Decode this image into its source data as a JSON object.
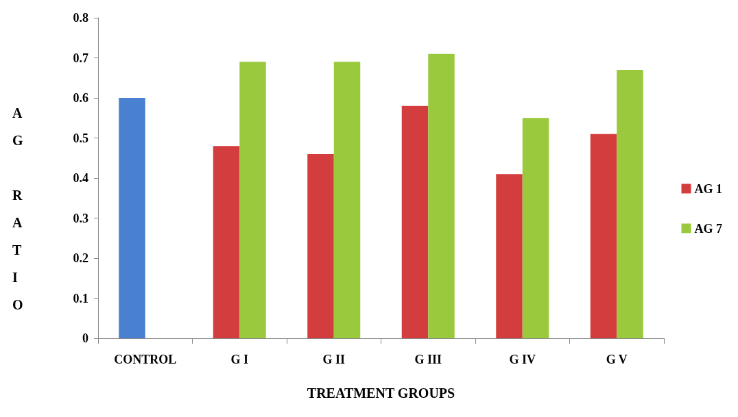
{
  "chart_data": {
    "type": "bar",
    "xlabel": "TREATMENT GROUPS",
    "ylabel": "A\nG\n\nR\nA\nT\nI\nO",
    "categories": [
      "CONTROL",
      "G I",
      "G II",
      "G III",
      "G IV",
      "G V"
    ],
    "series": [
      {
        "name": "AG 1",
        "color": "#d43d3d",
        "colors": [
          "#4a80d0",
          "#d43d3d",
          "#d43d3d",
          "#d43d3d",
          "#d43d3d",
          "#d43d3d"
        ],
        "values": [
          0.6,
          0.48,
          0.46,
          0.58,
          0.41,
          0.51
        ]
      },
      {
        "name": "AG 7",
        "color": "#9bc93e",
        "values": [
          null,
          0.69,
          0.69,
          0.71,
          0.55,
          0.67
        ]
      }
    ],
    "ylim": [
      0,
      0.8
    ],
    "yticks": [
      0,
      0.1,
      0.2,
      0.3,
      0.4,
      0.5,
      0.6,
      0.7,
      0.8
    ],
    "grid": false,
    "legend": "right"
  }
}
